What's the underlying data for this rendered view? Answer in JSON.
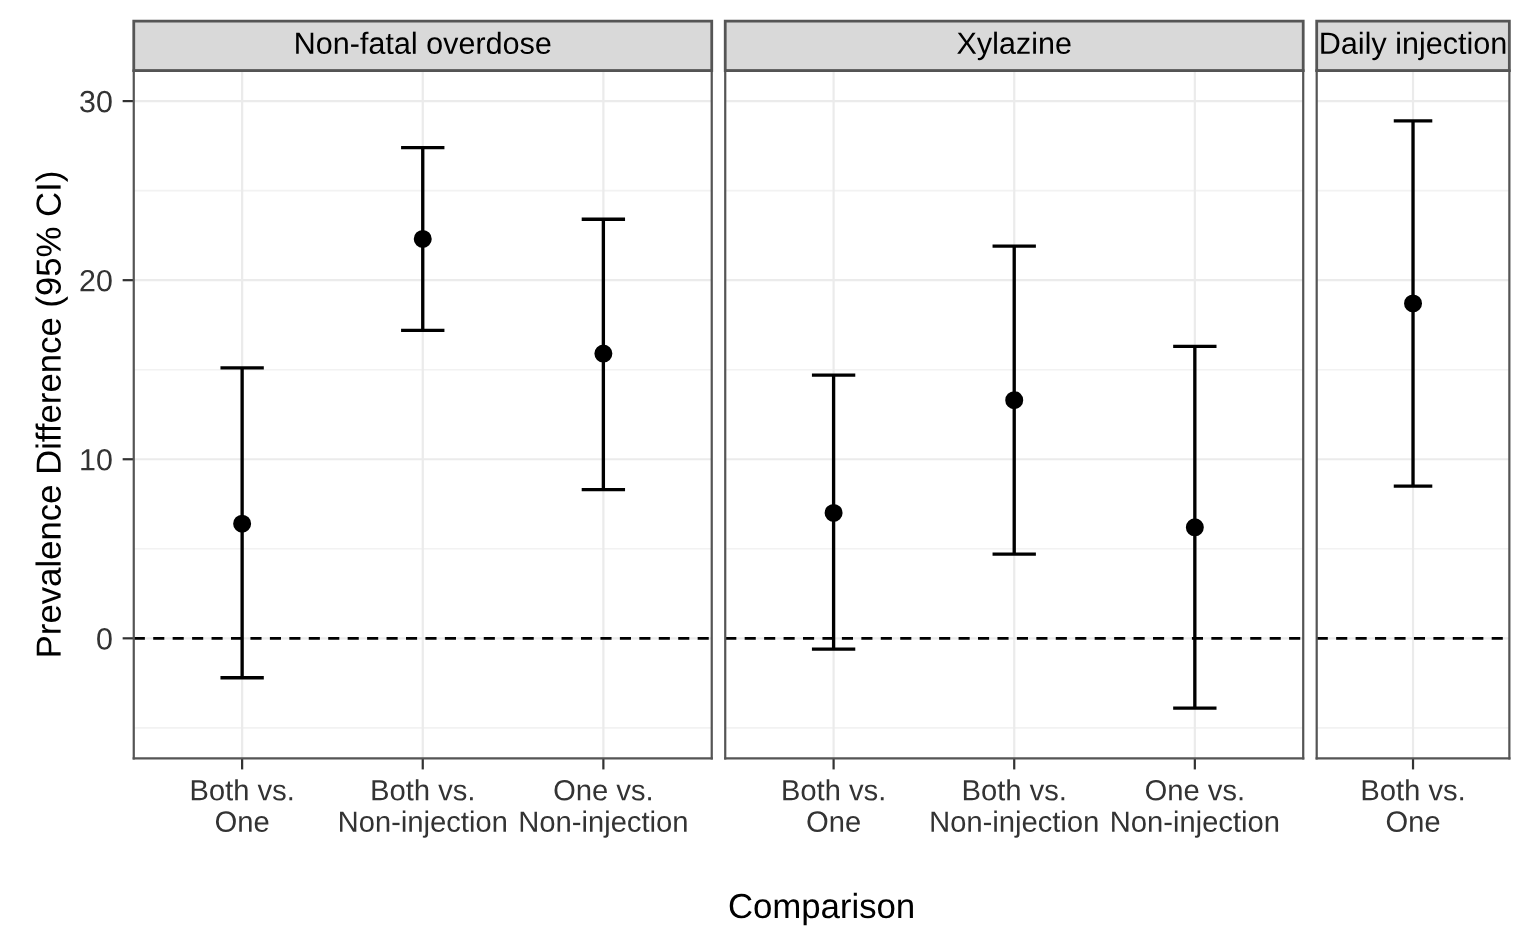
{
  "chart_data": [
    {
      "type": "scatter",
      "title": "Non-fatal overdose",
      "ylabel": "Prevalence Difference (95% CI)",
      "categories": [
        "Both vs.\nOne",
        "Both vs.\nNon-injection",
        "One vs.\nNon-injection"
      ],
      "series": [
        {
          "color": "#000000",
          "values": [
            6.4,
            22.3,
            15.9
          ],
          "errors": [
            [
              -2.2,
              15.1
            ],
            [
              17.2,
              27.4
            ],
            [
              8.3,
              23.4
            ]
          ]
        }
      ],
      "ylim": [
        -6.7,
        31.7
      ],
      "yticks": [
        0,
        10,
        20,
        30
      ],
      "grid": true,
      "marker": "circle",
      "ref_lines": [
        {
          "axis": "y",
          "value": 0,
          "color": "#000000",
          "line_style": "dashed"
        }
      ]
    },
    {
      "type": "scatter",
      "title": "Xylazine",
      "xlabel": "Comparison",
      "categories": [
        "Both vs.\nOne",
        "Both vs.\nNon-injection",
        "One vs.\nNon-injection"
      ],
      "series": [
        {
          "color": "#000000",
          "values": [
            7.0,
            13.3,
            6.2
          ],
          "errors": [
            [
              -0.6,
              14.7
            ],
            [
              4.7,
              21.9
            ],
            [
              -3.9,
              16.3
            ]
          ]
        }
      ],
      "ylim": [
        -6.7,
        31.7
      ],
      "yticks": [
        0,
        10,
        20,
        30
      ],
      "tick_labels": "x",
      "grid": true,
      "marker": "circle",
      "ref_lines": [
        {
          "axis": "y",
          "value": 0,
          "color": "#000000",
          "line_style": "dashed"
        }
      ]
    },
    {
      "type": "scatter",
      "title": "Daily injection",
      "categories": [
        "Both vs.\nOne"
      ],
      "series": [
        {
          "color": "#000000",
          "values": [
            18.7
          ],
          "errors": [
            [
              8.5,
              28.9
            ]
          ]
        }
      ],
      "ylim": [
        -6.7,
        31.7
      ],
      "yticks": [
        0,
        10,
        20,
        30
      ],
      "tick_labels": "x",
      "grid": true,
      "marker": "circle",
      "ref_lines": [
        {
          "axis": "y",
          "value": 0,
          "color": "#000000",
          "line_style": "dashed"
        }
      ]
    }
  ]
}
